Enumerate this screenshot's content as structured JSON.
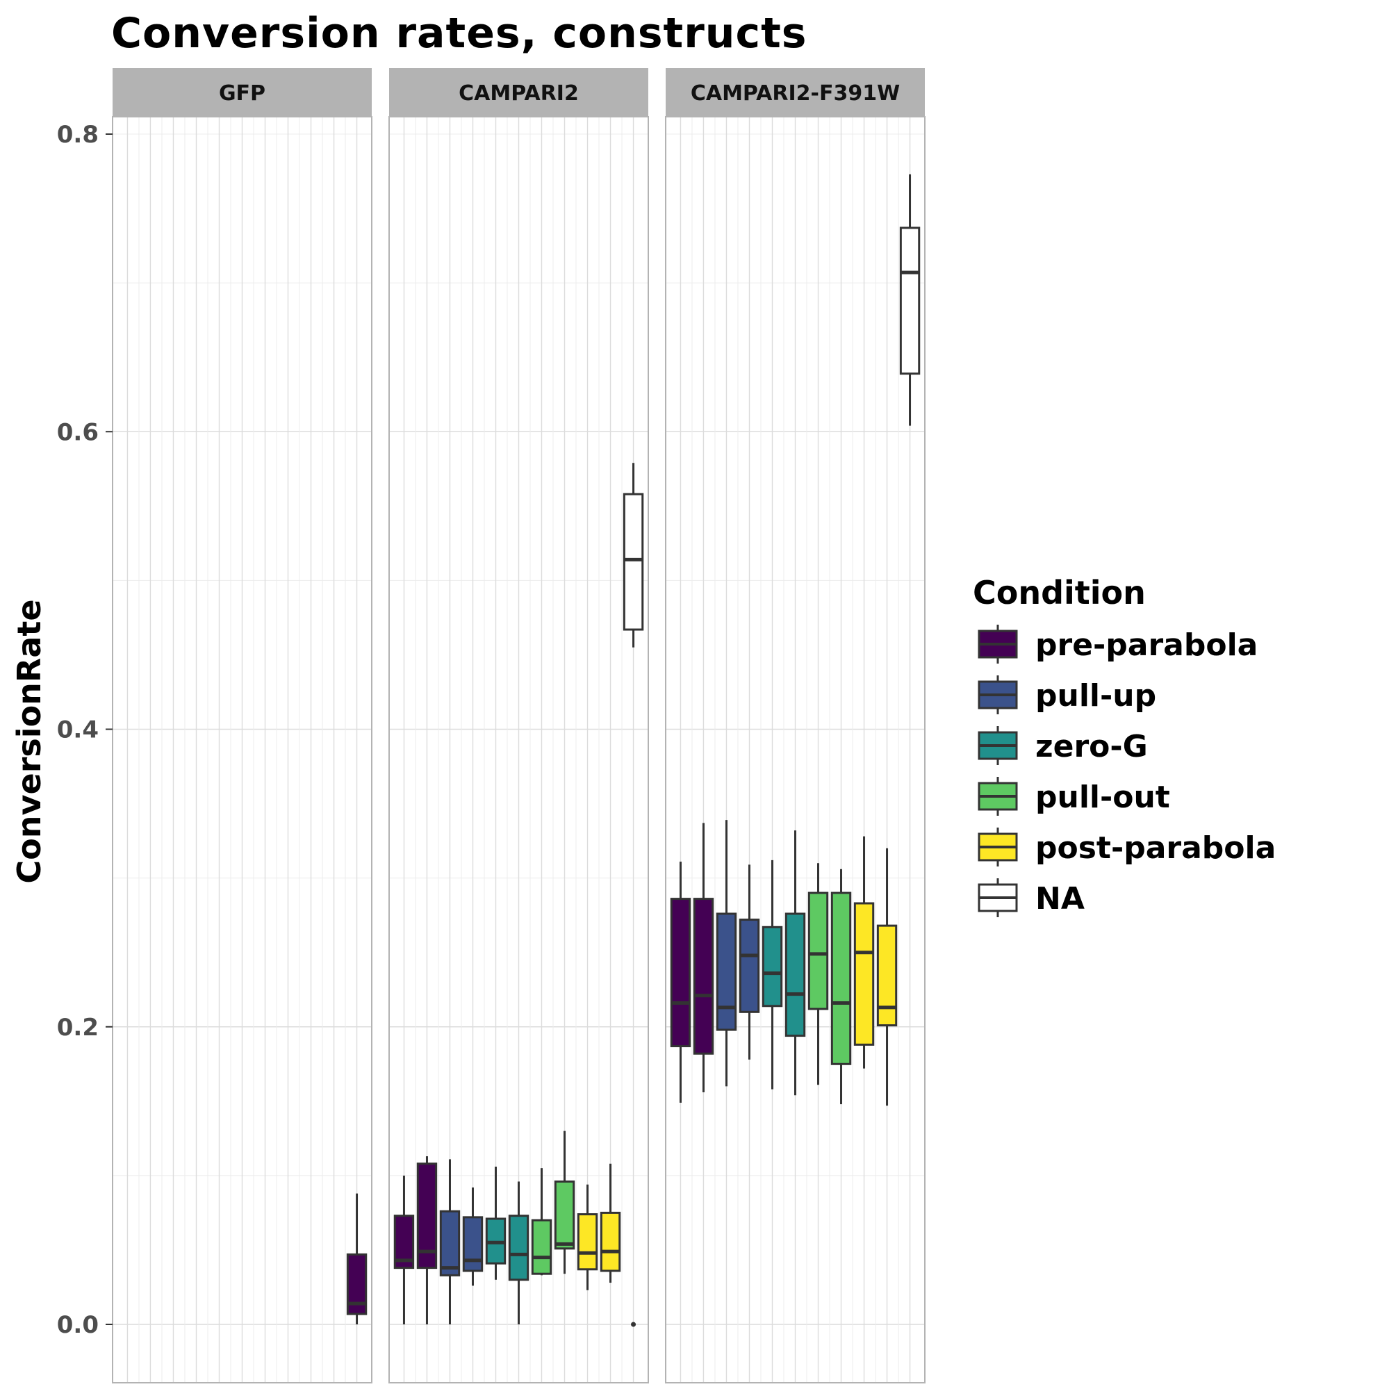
{
  "chart_data": {
    "type": "boxplot",
    "title": "Conversion rates, constructs",
    "ylabel": "ConversionRate",
    "xlabel": "",
    "ylim": [
      -0.04,
      0.85
    ],
    "yticks": [
      0.0,
      0.2,
      0.4,
      0.6,
      0.8
    ],
    "ytick_labels": [
      "0.0",
      "0.2",
      "0.4",
      "0.6",
      "0.8"
    ],
    "grid": true,
    "legend": {
      "title": "Condition",
      "placement": "right",
      "entries": [
        {
          "label": "pre-parabola",
          "color": "#440154"
        },
        {
          "label": "pull-up",
          "color": "#3b528b"
        },
        {
          "label": "zero-G",
          "color": "#21908c"
        },
        {
          "label": "pull-out",
          "color": "#5ec962"
        },
        {
          "label": "post-parabola",
          "color": "#fde725"
        },
        {
          "label": "NA",
          "color": "#ffffff"
        }
      ]
    },
    "facets": [
      {
        "label": "GFP",
        "slots": 11,
        "boxes": [
          {
            "slot": 10,
            "condition": "pre-parabola",
            "whisker_low": 0.0,
            "q1": 0.007,
            "median": 0.014,
            "q3": 0.047,
            "whisker_high": 0.088
          }
        ]
      },
      {
        "label": "CAMPARI2",
        "slots": 11,
        "boxes": [
          {
            "slot": 0,
            "condition": "pre-parabola",
            "whisker_low": 0.0,
            "q1": 0.038,
            "median": 0.043,
            "q3": 0.073,
            "whisker_high": 0.1
          },
          {
            "slot": 1,
            "condition": "pre-parabola",
            "whisker_low": 0.0,
            "q1": 0.038,
            "median": 0.049,
            "q3": 0.108,
            "whisker_high": 0.113
          },
          {
            "slot": 2,
            "condition": "pull-up",
            "whisker_low": 0.0,
            "q1": 0.033,
            "median": 0.038,
            "q3": 0.076,
            "whisker_high": 0.111
          },
          {
            "slot": 3,
            "condition": "pull-up",
            "whisker_low": 0.026,
            "q1": 0.036,
            "median": 0.043,
            "q3": 0.072,
            "whisker_high": 0.092
          },
          {
            "slot": 4,
            "condition": "zero-G",
            "whisker_low": 0.03,
            "q1": 0.041,
            "median": 0.055,
            "q3": 0.071,
            "whisker_high": 0.106
          },
          {
            "slot": 5,
            "condition": "zero-G",
            "whisker_low": 0.0,
            "q1": 0.03,
            "median": 0.047,
            "q3": 0.073,
            "whisker_high": 0.096
          },
          {
            "slot": 6,
            "condition": "pull-out",
            "whisker_low": 0.033,
            "q1": 0.034,
            "median": 0.045,
            "q3": 0.07,
            "whisker_high": 0.105
          },
          {
            "slot": 7,
            "condition": "pull-out",
            "whisker_low": 0.034,
            "q1": 0.051,
            "median": 0.054,
            "q3": 0.096,
            "whisker_high": 0.13
          },
          {
            "slot": 8,
            "condition": "post-parabola",
            "whisker_low": 0.023,
            "q1": 0.037,
            "median": 0.048,
            "q3": 0.074,
            "whisker_high": 0.094
          },
          {
            "slot": 9,
            "condition": "post-parabola",
            "whisker_low": 0.028,
            "q1": 0.036,
            "median": 0.049,
            "q3": 0.075,
            "whisker_high": 0.108
          },
          {
            "slot": 10,
            "condition": "NA",
            "whisker_low": 0.455,
            "q1": 0.467,
            "median": 0.514,
            "q3": 0.558,
            "whisker_high": 0.579,
            "outliers": [
              0.0
            ]
          }
        ]
      },
      {
        "label": "CAMPARI2-F391W",
        "slots": 11,
        "boxes": [
          {
            "slot": 0,
            "condition": "pre-parabola",
            "whisker_low": 0.149,
            "q1": 0.187,
            "median": 0.216,
            "q3": 0.286,
            "whisker_high": 0.311
          },
          {
            "slot": 1,
            "condition": "pre-parabola",
            "whisker_low": 0.156,
            "q1": 0.182,
            "median": 0.221,
            "q3": 0.286,
            "whisker_high": 0.337
          },
          {
            "slot": 2,
            "condition": "pull-up",
            "whisker_low": 0.16,
            "q1": 0.198,
            "median": 0.213,
            "q3": 0.276,
            "whisker_high": 0.339
          },
          {
            "slot": 3,
            "condition": "pull-up",
            "whisker_low": 0.178,
            "q1": 0.21,
            "median": 0.248,
            "q3": 0.272,
            "whisker_high": 0.309
          },
          {
            "slot": 4,
            "condition": "zero-G",
            "whisker_low": 0.158,
            "q1": 0.214,
            "median": 0.236,
            "q3": 0.267,
            "whisker_high": 0.312
          },
          {
            "slot": 5,
            "condition": "zero-G",
            "whisker_low": 0.154,
            "q1": 0.194,
            "median": 0.222,
            "q3": 0.276,
            "whisker_high": 0.332
          },
          {
            "slot": 6,
            "condition": "pull-out",
            "whisker_low": 0.161,
            "q1": 0.212,
            "median": 0.249,
            "q3": 0.29,
            "whisker_high": 0.31
          },
          {
            "slot": 7,
            "condition": "pull-out",
            "whisker_low": 0.148,
            "q1": 0.175,
            "median": 0.216,
            "q3": 0.29,
            "whisker_high": 0.306
          },
          {
            "slot": 8,
            "condition": "post-parabola",
            "whisker_low": 0.172,
            "q1": 0.188,
            "median": 0.25,
            "q3": 0.283,
            "whisker_high": 0.328
          },
          {
            "slot": 9,
            "condition": "post-parabola",
            "whisker_low": 0.147,
            "q1": 0.201,
            "median": 0.213,
            "q3": 0.268,
            "whisker_high": 0.32
          },
          {
            "slot": 10,
            "condition": "NA",
            "whisker_low": 0.604,
            "q1": 0.639,
            "median": 0.707,
            "q3": 0.737,
            "whisker_high": 0.773
          }
        ]
      }
    ]
  }
}
